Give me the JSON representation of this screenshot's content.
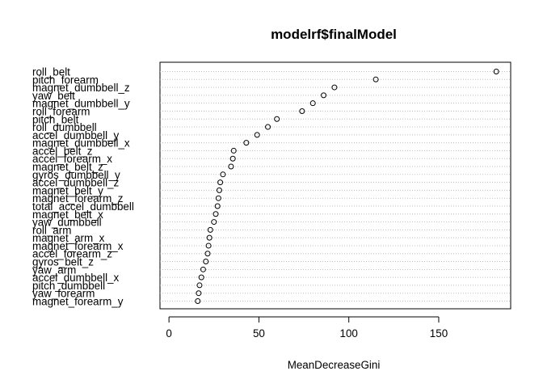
{
  "chart_data": {
    "type": "scatter",
    "subtype": "dotchart",
    "title": "modelrf$finalModel",
    "xlabel": "MeanDecreaseGini",
    "ylabel": "",
    "xlim": [
      -5,
      190
    ],
    "xticks": [
      0,
      50,
      100,
      150
    ],
    "grid": "horizontal dotted",
    "legend": "none",
    "categories": [
      "roll_belt",
      "pitch_forearm",
      "magnet_dumbbell_z",
      "yaw_belt",
      "magnet_dumbbell_y",
      "roll_forearm",
      "pitch_belt",
      "roll_dumbbell",
      "accel_dumbbell_y",
      "magnet_dumbbell_x",
      "accel_belt_z",
      "accel_forearm_x",
      "magnet_belt_z",
      "gyros_dumbbell_y",
      "accel_dumbbell_z",
      "magnet_belt_y",
      "magnet_forearm_z",
      "total_accel_dumbbell",
      "magnet_belt_x",
      "yaw_dumbbell",
      "roll_arm",
      "magnet_arm_x",
      "magnet_forearm_x",
      "accel_forearm_z",
      "gyros_belt_z",
      "yaw_arm",
      "accel_dumbbell_x",
      "pitch_dumbbell",
      "yaw_forearm",
      "magnet_forearm_y"
    ],
    "values": [
      182.0,
      115.0,
      92.0,
      86.0,
      80.0,
      74.0,
      60.0,
      55.0,
      49.0,
      43.0,
      36.0,
      35.5,
      34.5,
      30.0,
      28.5,
      28.0,
      27.5,
      27.0,
      26.0,
      25.0,
      23.0,
      22.5,
      22.0,
      21.5,
      20.5,
      19.0,
      18.0,
      17.0,
      16.5,
      16.0
    ]
  }
}
